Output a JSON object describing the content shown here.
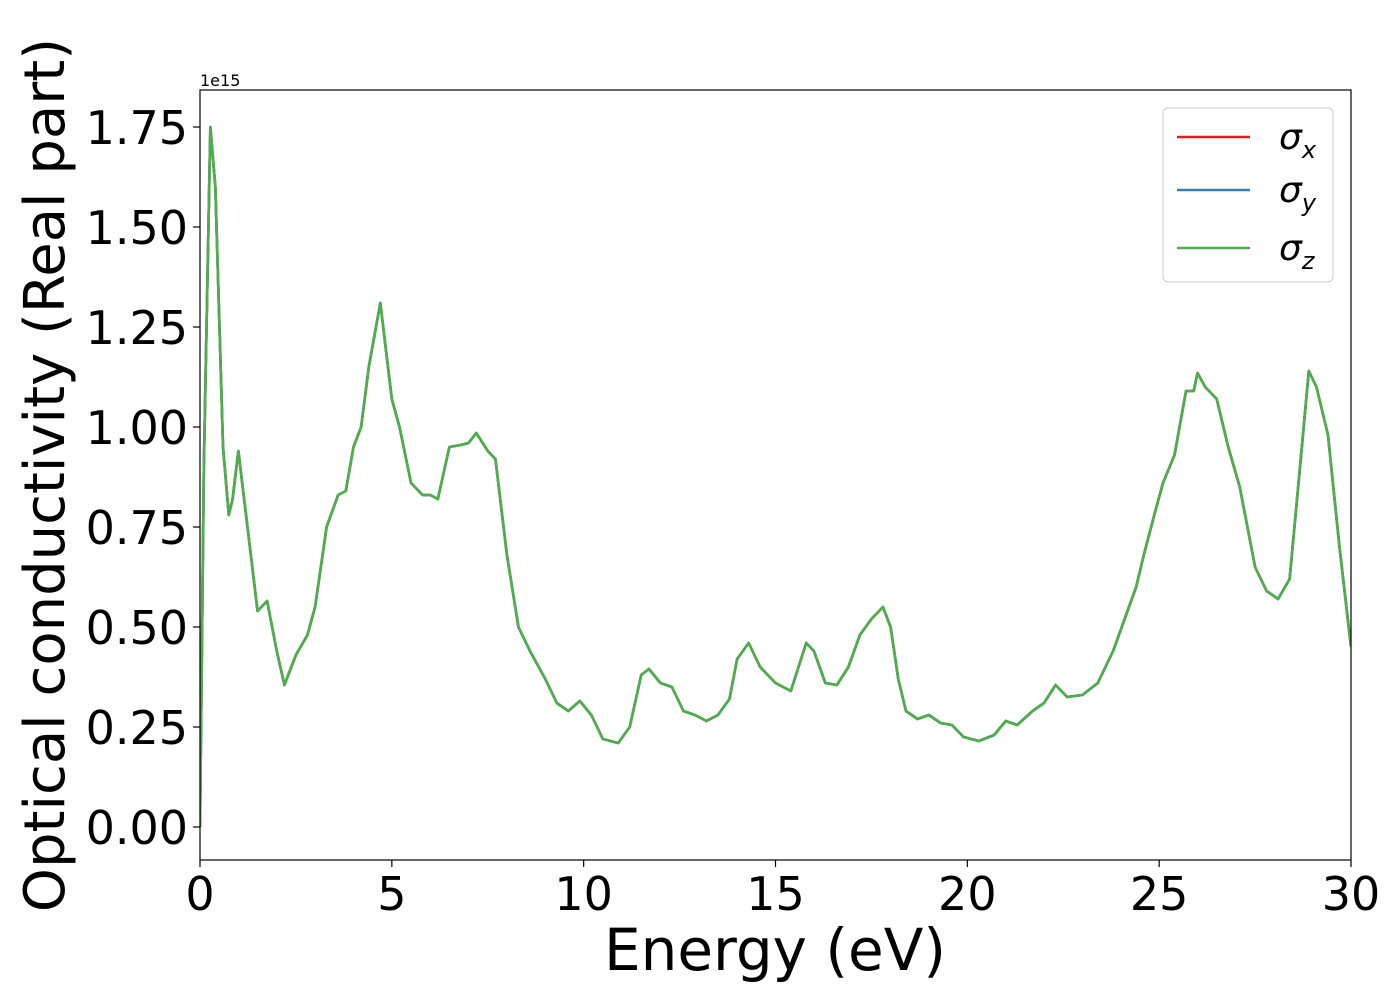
{
  "chart_data": {
    "type": "line",
    "xlabel": "Energy (eV)",
    "ylabel": "Optical conductivity (Real part)",
    "y_offset_label": "1e15",
    "x": [
      0,
      0.1,
      0.27,
      0.4,
      0.6,
      0.75,
      0.85,
      1.0,
      1.2,
      1.5,
      1.75,
      2.0,
      2.2,
      2.5,
      2.8,
      3.0,
      3.3,
      3.6,
      3.8,
      4.0,
      4.2,
      4.4,
      4.7,
      5.0,
      5.2,
      5.5,
      5.8,
      6.0,
      6.2,
      6.5,
      6.8,
      7.0,
      7.2,
      7.5,
      7.7,
      8.0,
      8.3,
      8.6,
      9.0,
      9.3,
      9.6,
      9.9,
      10.2,
      10.5,
      10.9,
      11.2,
      11.5,
      11.7,
      12.0,
      12.3,
      12.6,
      12.9,
      13.2,
      13.5,
      13.8,
      14.0,
      14.3,
      14.6,
      15.0,
      15.4,
      15.8,
      16.0,
      16.3,
      16.6,
      16.9,
      17.2,
      17.5,
      17.8,
      18.0,
      18.2,
      18.4,
      18.7,
      19.0,
      19.3,
      19.6,
      19.9,
      20.3,
      20.7,
      21.0,
      21.3,
      21.7,
      22.0,
      22.3,
      22.6,
      23.0,
      23.4,
      23.8,
      24.1,
      24.4,
      24.6,
      24.9,
      25.1,
      25.4,
      25.7,
      25.9,
      26.0,
      26.2,
      26.5,
      26.8,
      27.1,
      27.5,
      27.8,
      28.1,
      28.4,
      28.7,
      28.9,
      29.1,
      29.4,
      29.7,
      30.0
    ],
    "series": [
      {
        "name": "σx",
        "color": "#e41a1c",
        "values": [
          0.0,
          0.9,
          1.75,
          1.6,
          0.95,
          0.78,
          0.82,
          0.94,
          0.78,
          0.54,
          0.565,
          0.44,
          0.355,
          0.43,
          0.48,
          0.55,
          0.75,
          0.83,
          0.84,
          0.95,
          1.0,
          1.15,
          1.31,
          1.07,
          1.0,
          0.86,
          0.83,
          0.83,
          0.82,
          0.95,
          0.955,
          0.96,
          0.985,
          0.94,
          0.92,
          0.68,
          0.5,
          0.44,
          0.37,
          0.31,
          0.29,
          0.315,
          0.28,
          0.22,
          0.21,
          0.25,
          0.38,
          0.395,
          0.36,
          0.35,
          0.29,
          0.28,
          0.265,
          0.28,
          0.32,
          0.42,
          0.46,
          0.4,
          0.36,
          0.34,
          0.46,
          0.44,
          0.36,
          0.355,
          0.4,
          0.48,
          0.52,
          0.55,
          0.5,
          0.37,
          0.29,
          0.27,
          0.28,
          0.26,
          0.255,
          0.225,
          0.215,
          0.23,
          0.265,
          0.255,
          0.29,
          0.31,
          0.355,
          0.325,
          0.33,
          0.36,
          0.44,
          0.52,
          0.6,
          0.68,
          0.79,
          0.86,
          0.93,
          1.09,
          1.09,
          1.135,
          1.1,
          1.07,
          0.95,
          0.85,
          0.65,
          0.59,
          0.57,
          0.62,
          0.93,
          1.14,
          1.1,
          0.98,
          0.7,
          0.45
        ]
      },
      {
        "name": "σy",
        "color": "#377eb8",
        "values": [
          0.0,
          0.9,
          1.75,
          1.6,
          0.95,
          0.78,
          0.82,
          0.94,
          0.78,
          0.54,
          0.565,
          0.44,
          0.355,
          0.43,
          0.48,
          0.55,
          0.75,
          0.83,
          0.84,
          0.95,
          1.0,
          1.15,
          1.31,
          1.07,
          1.0,
          0.86,
          0.83,
          0.83,
          0.82,
          0.95,
          0.955,
          0.96,
          0.985,
          0.94,
          0.92,
          0.68,
          0.5,
          0.44,
          0.37,
          0.31,
          0.29,
          0.315,
          0.28,
          0.22,
          0.21,
          0.25,
          0.38,
          0.395,
          0.36,
          0.35,
          0.29,
          0.28,
          0.265,
          0.28,
          0.32,
          0.42,
          0.46,
          0.4,
          0.36,
          0.34,
          0.46,
          0.44,
          0.36,
          0.355,
          0.4,
          0.48,
          0.52,
          0.55,
          0.5,
          0.37,
          0.29,
          0.27,
          0.28,
          0.26,
          0.255,
          0.225,
          0.215,
          0.23,
          0.265,
          0.255,
          0.29,
          0.31,
          0.355,
          0.325,
          0.33,
          0.36,
          0.44,
          0.52,
          0.6,
          0.68,
          0.79,
          0.86,
          0.93,
          1.09,
          1.09,
          1.135,
          1.1,
          1.07,
          0.95,
          0.85,
          0.65,
          0.59,
          0.57,
          0.62,
          0.93,
          1.14,
          1.1,
          0.98,
          0.7,
          0.45
        ]
      },
      {
        "name": "σz",
        "color": "#4daf4a",
        "values": [
          0.0,
          0.9,
          1.75,
          1.6,
          0.95,
          0.78,
          0.82,
          0.94,
          0.78,
          0.54,
          0.565,
          0.44,
          0.355,
          0.43,
          0.48,
          0.55,
          0.75,
          0.83,
          0.84,
          0.95,
          1.0,
          1.15,
          1.31,
          1.07,
          1.0,
          0.86,
          0.83,
          0.83,
          0.82,
          0.95,
          0.955,
          0.96,
          0.985,
          0.94,
          0.92,
          0.68,
          0.5,
          0.44,
          0.37,
          0.31,
          0.29,
          0.315,
          0.28,
          0.22,
          0.21,
          0.25,
          0.38,
          0.395,
          0.36,
          0.35,
          0.29,
          0.28,
          0.265,
          0.28,
          0.32,
          0.42,
          0.46,
          0.4,
          0.36,
          0.34,
          0.46,
          0.44,
          0.36,
          0.355,
          0.4,
          0.48,
          0.52,
          0.55,
          0.5,
          0.37,
          0.29,
          0.27,
          0.28,
          0.26,
          0.255,
          0.225,
          0.215,
          0.23,
          0.265,
          0.255,
          0.29,
          0.31,
          0.355,
          0.325,
          0.33,
          0.36,
          0.44,
          0.52,
          0.6,
          0.68,
          0.79,
          0.86,
          0.93,
          1.09,
          1.09,
          1.135,
          1.1,
          1.07,
          0.95,
          0.85,
          0.65,
          0.59,
          0.57,
          0.62,
          0.93,
          1.14,
          1.1,
          0.98,
          0.7,
          0.45
        ]
      }
    ],
    "xlim": [
      0,
      30
    ],
    "xticks": [
      0,
      5,
      10,
      15,
      20,
      25,
      30
    ],
    "ylim": [
      -0.0825,
      1.8425
    ],
    "yticks": [
      {
        "value": 0,
        "label": "0.00"
      },
      0.25,
      {
        "value": 0.5,
        "label": "0.50"
      },
      0.75,
      {
        "value": 1,
        "label": "1.00"
      },
      1.25,
      {
        "value": 1.5,
        "label": "1.50"
      },
      1.75
    ],
    "grid": false,
    "legend": "upper right"
  }
}
